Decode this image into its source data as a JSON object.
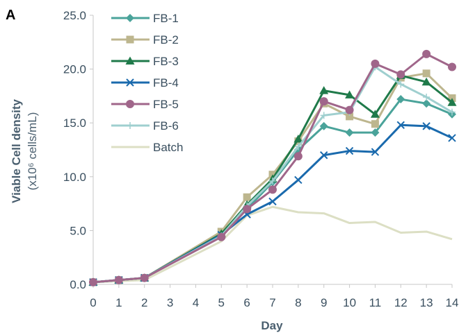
{
  "panel_label": "A",
  "chart_data": {
    "type": "line",
    "xlabel": "Day",
    "ylabel": "Viable Cell density",
    "ylabel_unit": "(x10⁶ cells/mL)",
    "ylim": [
      0,
      25
    ],
    "y_ticks": [
      "0.0",
      "5.0",
      "10.0",
      "15.0",
      "20.0",
      "25.0"
    ],
    "x_categories": [
      "0",
      "1",
      "2",
      "3",
      "4",
      "5",
      "6",
      "7",
      "8",
      "9",
      "10",
      "11",
      "12",
      "13",
      "14"
    ],
    "grid": false,
    "legend_position": "top-left",
    "series": [
      {
        "name": "FB-1",
        "color": "#4aa39a",
        "marker": "diamond",
        "x": [
          "0",
          "1",
          "2",
          "5",
          "6",
          "7",
          "8",
          "9",
          "10",
          "11",
          "12",
          "13",
          "14"
        ],
        "values": [
          0.2,
          0.4,
          0.6,
          4.6,
          7.0,
          9.5,
          12.5,
          14.7,
          14.1,
          14.1,
          17.2,
          16.8,
          15.8
        ]
      },
      {
        "name": "FB-2",
        "color": "#bdb68e",
        "marker": "square",
        "x": [
          "0",
          "1",
          "2",
          "5",
          "6",
          "7",
          "8",
          "9",
          "10",
          "11",
          "12",
          "13",
          "14"
        ],
        "values": [
          0.2,
          0.4,
          0.6,
          4.9,
          8.1,
          10.2,
          13.3,
          16.8,
          15.6,
          14.9,
          19.2,
          19.6,
          17.3
        ]
      },
      {
        "name": "FB-3",
        "color": "#1f7a4a",
        "marker": "triangle",
        "x": [
          "0",
          "1",
          "2",
          "5",
          "6",
          "7",
          "8",
          "9",
          "10",
          "11",
          "12",
          "13",
          "14"
        ],
        "values": [
          0.2,
          0.4,
          0.6,
          4.7,
          7.4,
          9.8,
          13.5,
          18.0,
          17.6,
          15.8,
          19.4,
          18.8,
          16.9
        ]
      },
      {
        "name": "FB-4",
        "color": "#1a6aad",
        "marker": "x",
        "x": [
          "0",
          "1",
          "2",
          "5",
          "6",
          "7",
          "8",
          "9",
          "10",
          "11",
          "12",
          "13",
          "14"
        ],
        "values": [
          0.2,
          0.4,
          0.6,
          4.6,
          6.5,
          7.7,
          9.7,
          12.0,
          12.4,
          12.3,
          14.8,
          14.7,
          13.6
        ]
      },
      {
        "name": "FB-5",
        "color": "#a0668a",
        "marker": "circle",
        "x": [
          "0",
          "1",
          "2",
          "5",
          "6",
          "7",
          "8",
          "9",
          "10",
          "11",
          "12",
          "13",
          "14"
        ],
        "values": [
          0.2,
          0.4,
          0.6,
          4.4,
          7.0,
          8.8,
          11.9,
          17.0,
          16.2,
          20.5,
          19.5,
          21.4,
          20.2
        ]
      },
      {
        "name": "FB-6",
        "color": "#9fcfcf",
        "marker": "plus",
        "x": [
          "0",
          "1",
          "2",
          "5",
          "6",
          "7",
          "8",
          "9",
          "10",
          "11",
          "12",
          "13",
          "14"
        ],
        "values": [
          0.2,
          0.4,
          0.6,
          4.5,
          7.3,
          9.6,
          12.8,
          15.7,
          16.0,
          20.2,
          18.6,
          17.4,
          16.0
        ]
      },
      {
        "name": "Batch",
        "color": "#dcdfc4",
        "marker": "none",
        "x": [
          "0",
          "1",
          "2",
          "5",
          "6",
          "7",
          "8",
          "9",
          "10",
          "11",
          "12",
          "13",
          "14"
        ],
        "values": [
          0.2,
          0.3,
          0.4,
          4.0,
          6.4,
          7.2,
          6.7,
          6.6,
          5.7,
          5.8,
          4.8,
          4.9,
          4.2
        ]
      }
    ]
  }
}
